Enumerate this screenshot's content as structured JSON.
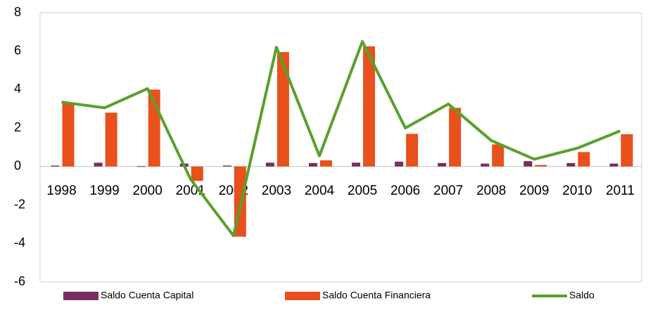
{
  "chart_data": {
    "type": "bar-line",
    "categories": [
      "1998",
      "1999",
      "2000",
      "2001",
      "2002",
      "2003",
      "2004",
      "2005",
      "2006",
      "2007",
      "2008",
      "2009",
      "2010",
      "2011"
    ],
    "series": [
      {
        "name": "Saldo Cuenta Capital",
        "type": "bar",
        "color": "#7b2c5e",
        "values": [
          0.05,
          0.2,
          0.02,
          0.15,
          0.05,
          0.2,
          0.18,
          0.2,
          0.25,
          0.18,
          0.15,
          0.28,
          0.18,
          0.15
        ]
      },
      {
        "name": "Saldo Cuenta Financiera",
        "type": "bar",
        "color": "#e8501c",
        "values": [
          3.3,
          2.8,
          4.0,
          -0.75,
          -3.65,
          5.95,
          0.32,
          6.25,
          1.7,
          3.05,
          1.15,
          0.08,
          0.75,
          1.68
        ]
      },
      {
        "name": "Saldo",
        "type": "line",
        "color": "#5aa02c",
        "values": [
          3.35,
          3.05,
          4.05,
          -0.65,
          -3.6,
          6.2,
          0.55,
          6.5,
          2.0,
          3.25,
          1.35,
          0.38,
          0.95,
          1.85
        ]
      }
    ],
    "ylim": [
      -6,
      8
    ],
    "yticks": [
      -6,
      -4,
      -2,
      0,
      2,
      4,
      6,
      8
    ],
    "legend": "bottom"
  }
}
